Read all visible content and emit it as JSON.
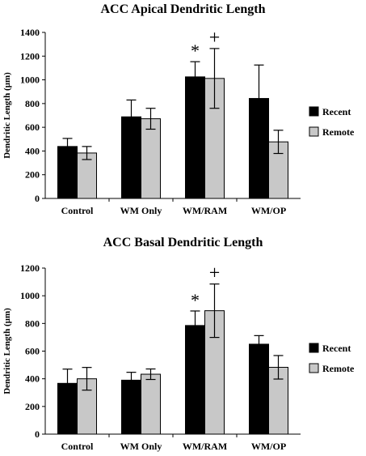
{
  "chart_data": [
    {
      "type": "bar",
      "title": "ACC Apical Dendritic Length",
      "ylabel": "Dendritic Length (µm)",
      "xlabel": "",
      "categories": [
        "Control",
        "WM Only",
        "WM/RAM",
        "WM/OP"
      ],
      "ylim": [
        0,
        1400
      ],
      "yticks": [
        0,
        200,
        400,
        600,
        800,
        1000,
        1200,
        1400
      ],
      "grid": false,
      "legend_position": "right",
      "series": [
        {
          "name": "Recent",
          "color": "#000000",
          "values": [
            438,
            688,
            1025,
            843
          ],
          "errors": [
            68,
            142,
            128,
            282
          ]
        },
        {
          "name": "Remote",
          "color": "#c8c8c8",
          "values": [
            383,
            672,
            1012,
            477
          ],
          "errors": [
            55,
            88,
            252,
            98
          ]
        }
      ],
      "annotations": [
        {
          "text": "*",
          "category": "WM/RAM",
          "series": "Recent"
        },
        {
          "text": "+",
          "category": "WM/RAM",
          "series": "Remote"
        }
      ]
    },
    {
      "type": "bar",
      "title": "ACC Basal Dendritic Length",
      "ylabel": "Dendritic Length (µm)",
      "xlabel": "",
      "categories": [
        "Control",
        "WM Only",
        "WM/RAM",
        "WM/OP"
      ],
      "ylim": [
        0,
        1200
      ],
      "yticks": [
        0,
        200,
        400,
        600,
        800,
        1000,
        1200
      ],
      "grid": false,
      "legend_position": "right",
      "series": [
        {
          "name": "Recent",
          "color": "#000000",
          "values": [
            367,
            390,
            785,
            650
          ],
          "errors": [
            103,
            57,
            105,
            62
          ]
        },
        {
          "name": "Remote",
          "color": "#c8c8c8",
          "values": [
            400,
            433,
            892,
            483
          ],
          "errors": [
            82,
            38,
            193,
            85
          ]
        }
      ],
      "annotations": [
        {
          "text": "*",
          "category": "WM/RAM",
          "series": "Recent"
        },
        {
          "text": "+",
          "category": "WM/RAM",
          "series": "Remote"
        }
      ]
    }
  ]
}
